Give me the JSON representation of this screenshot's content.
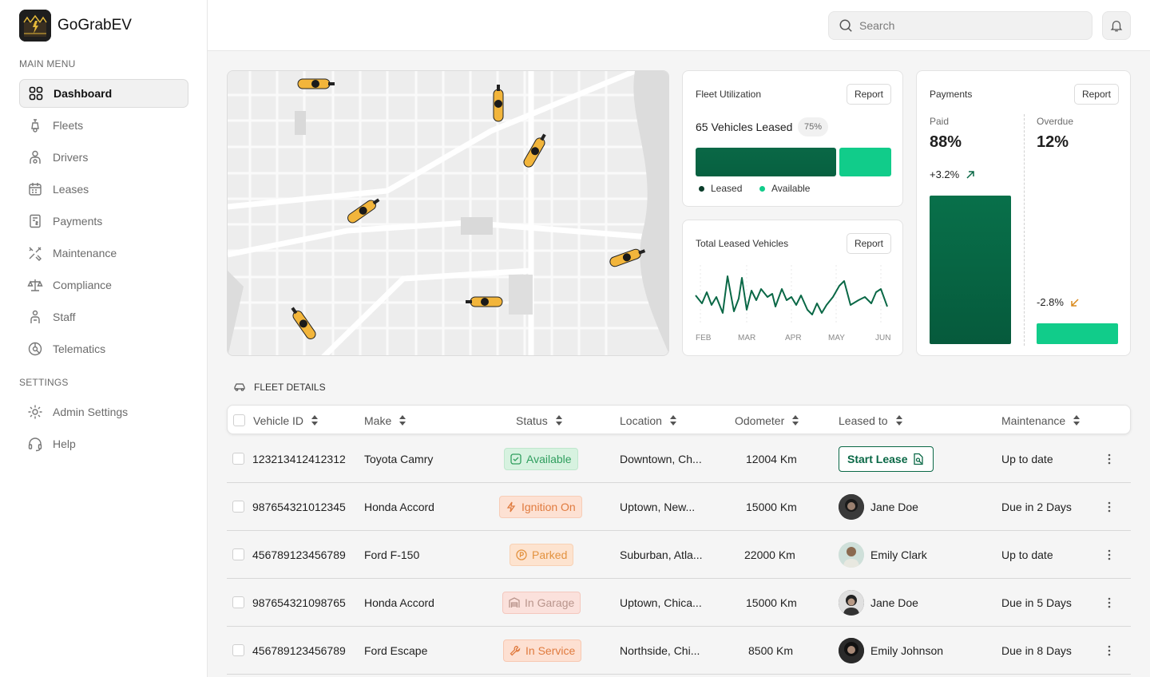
{
  "brand": {
    "name": "GoGrabEV"
  },
  "sidebar": {
    "main_menu_label": "MAIN MENU",
    "settings_label": "SETTINGS",
    "items": [
      {
        "label": "Dashboard",
        "icon": "dashboard-grid-icon"
      },
      {
        "label": "Fleets",
        "icon": "scooter-icon"
      },
      {
        "label": "Drivers",
        "icon": "driver-icon"
      },
      {
        "label": "Leases",
        "icon": "calendar-icon"
      },
      {
        "label": "Payments",
        "icon": "receipt-icon"
      },
      {
        "label": "Maintenance",
        "icon": "tools-icon"
      },
      {
        "label": "Compliance",
        "icon": "scale-icon"
      },
      {
        "label": "Staff",
        "icon": "staff-icon"
      },
      {
        "label": "Telematics",
        "icon": "telematics-icon"
      }
    ],
    "settings_items": [
      {
        "label": "Admin Settings",
        "icon": "settings-gear-icon"
      },
      {
        "label": "Help",
        "icon": "headset-icon"
      }
    ]
  },
  "search": {
    "placeholder": "Search"
  },
  "fleet_utilization": {
    "title": "Fleet Utilization",
    "report": "Report",
    "vehicles_leased": "65 Vehicles Leased",
    "percent": "75%",
    "legend_leased": "Leased",
    "legend_available": "Available"
  },
  "total_leased": {
    "title": "Total Leased Vehicles",
    "report": "Report",
    "months": [
      "FEB",
      "MAR",
      "APR",
      "MAY",
      "JUN"
    ]
  },
  "payments": {
    "title": "Payments",
    "report": "Report",
    "paid_label": "Paid",
    "paid_value": "88%",
    "paid_delta": "+3.2%",
    "overdue_label": "Overdue",
    "overdue_value": "12%",
    "overdue_delta": "-2.8%"
  },
  "fleet_details": {
    "title": "FLEET DETAILS",
    "columns": [
      "Vehicle ID",
      "Make",
      "Status",
      "Location",
      "Odometer",
      "Leased to",
      "Maintenance"
    ],
    "rows": [
      {
        "id": "123213412412312",
        "make": "Toyota Camry",
        "status": "Available",
        "location": "Downtown, Ch...",
        "odometer": "12004 Km",
        "leased_to": "Start Lease",
        "maintenance": "Up to date"
      },
      {
        "id": "987654321012345",
        "make": "Honda Accord",
        "status": "Ignition On",
        "location": "Uptown, New...",
        "odometer": "15000 Km",
        "leased_to": "Jane Doe",
        "maintenance": "Due in 2 Days"
      },
      {
        "id": "456789123456789",
        "make": "Ford F-150",
        "status": "Parked",
        "location": "Suburban, Atla...",
        "odometer": "22000 Km",
        "leased_to": "Emily Clark",
        "maintenance": "Up to date"
      },
      {
        "id": "987654321098765",
        "make": "Honda Accord",
        "status": "In Garage",
        "location": "Uptown, Chica...",
        "odometer": "15000 Km",
        "leased_to": "Jane Doe",
        "maintenance": "Due in 5 Days"
      },
      {
        "id": "456789123456789",
        "make": "Ford Escape",
        "status": "In Service",
        "location": "Northside, Chi...",
        "odometer": "8500 Km",
        "leased_to": "Emily Johnson",
        "maintenance": "Due in 8 Days"
      }
    ]
  },
  "colors": {
    "primary_green": "#0a6846",
    "accent_green": "#11cc8a",
    "available_bg": "#d7f2e0",
    "ignition_bg": "#fde1d3",
    "parked_bg": "#fde3cf",
    "garage_bg": "#fbe1dc",
    "service_bg": "#fde0d2"
  }
}
